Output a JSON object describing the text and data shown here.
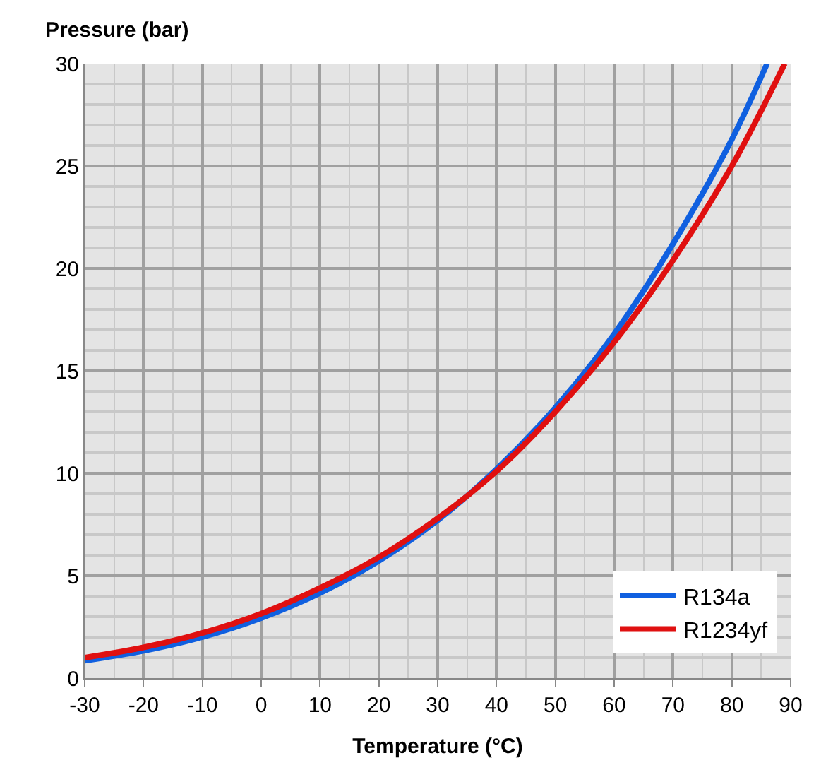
{
  "chart_data": {
    "type": "line",
    "xlabel": "Temperature (°C)",
    "ylabel": "Pressure (bar)",
    "xlim": [
      -30,
      90
    ],
    "xticks": [
      -30,
      -20,
      -10,
      0,
      10,
      20,
      30,
      40,
      50,
      60,
      70,
      80,
      90
    ],
    "ylim": [
      0,
      30
    ],
    "yticks": [
      0,
      5,
      10,
      15,
      20,
      25,
      30
    ],
    "grid": true,
    "legend": "bottom right",
    "marker": "none",
    "line_style": "solid",
    "series": [
      {
        "name": "R134a",
        "color": "#1060e0",
        "x": [
          -30,
          -20,
          -10,
          0,
          10,
          20,
          30,
          40,
          50,
          60,
          70,
          80,
          86
        ],
        "values": [
          0.85,
          1.33,
          2.0,
          2.93,
          4.15,
          5.72,
          7.7,
          10.2,
          13.2,
          16.8,
          21.2,
          26.3,
          30
        ]
      },
      {
        "name": "R1234yf",
        "color": "#e01010",
        "x": [
          -30,
          -20,
          -10,
          0,
          10,
          20,
          30,
          40,
          50,
          60,
          70,
          80,
          89
        ],
        "values": [
          1.0,
          1.5,
          2.2,
          3.15,
          4.4,
          5.9,
          7.8,
          10.1,
          13.0,
          16.4,
          20.4,
          25.0,
          30
        ]
      }
    ]
  }
}
